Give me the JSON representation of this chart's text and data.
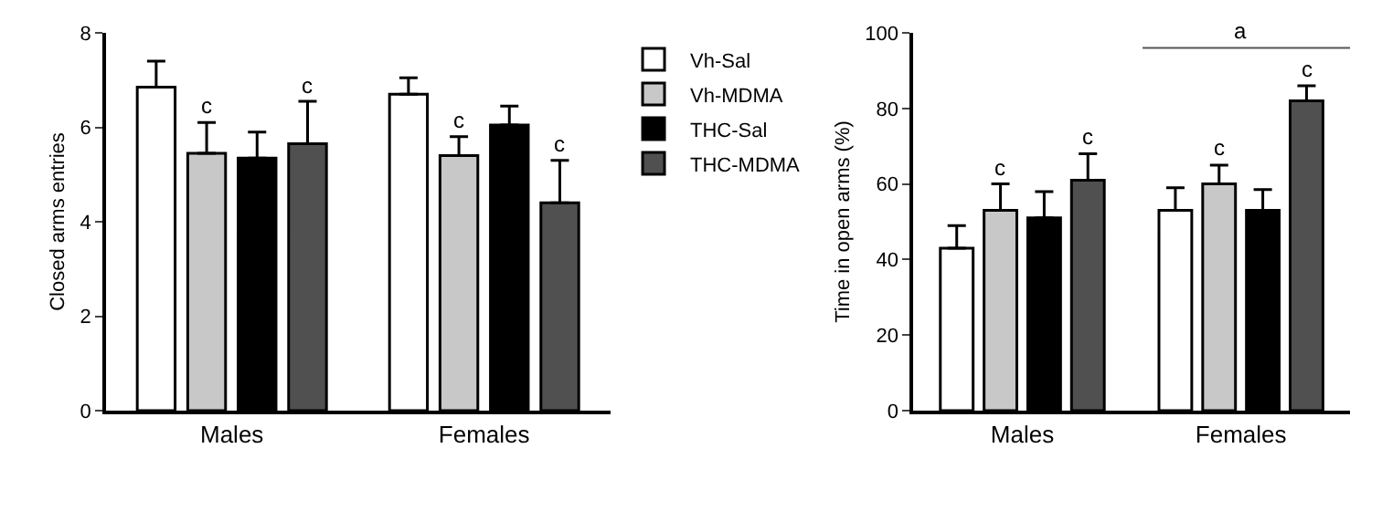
{
  "chart_data": [
    {
      "type": "bar",
      "ylabel": "Closed arms entries",
      "categories": [
        "Males",
        "Females"
      ],
      "ylim": [
        0,
        8
      ],
      "yticks": [
        0,
        2,
        4,
        6,
        8
      ],
      "legend": "top right",
      "series": [
        {
          "name": "Vh-Sal",
          "color": "#ffffff",
          "values": [
            6.85,
            6.7
          ],
          "errors": [
            [
              6.85,
              7.4
            ],
            [
              6.7,
              7.05
            ]
          ],
          "value_labels": [
            null,
            null
          ]
        },
        {
          "name": "Vh-MDMA",
          "color": "#c8c8c8",
          "values": [
            5.45,
            5.4
          ],
          "errors": [
            [
              5.45,
              6.1
            ],
            [
              5.4,
              5.8
            ]
          ],
          "value_labels": [
            "c",
            "c"
          ]
        },
        {
          "name": "THC-Sal",
          "color": "#000000",
          "values": [
            5.35,
            6.05
          ],
          "errors": [
            [
              5.35,
              5.9
            ],
            [
              6.05,
              6.45
            ]
          ],
          "value_labels": [
            null,
            null
          ]
        },
        {
          "name": "THC-MDMA",
          "color": "#505050",
          "values": [
            5.65,
            4.4
          ],
          "errors": [
            [
              5.65,
              6.55
            ],
            [
              4.4,
              5.3
            ]
          ],
          "value_labels": [
            "c",
            "c"
          ]
        }
      ]
    },
    {
      "type": "bar",
      "ylabel": "Time in open arms (%)",
      "categories": [
        "Males",
        "Females"
      ],
      "ylim": [
        0,
        100
      ],
      "yticks": [
        0,
        20,
        40,
        60,
        80,
        100
      ],
      "annotations": [
        "a"
      ],
      "series": [
        {
          "color": "#ffffff",
          "values": [
            43,
            53
          ],
          "errors": [
            [
              43,
              49
            ],
            [
              53,
              59
            ]
          ],
          "value_labels": [
            null,
            null
          ]
        },
        {
          "color": "#c8c8c8",
          "values": [
            53,
            60
          ],
          "errors": [
            [
              53,
              60
            ],
            [
              60,
              65
            ]
          ],
          "value_labels": [
            "c",
            "c"
          ]
        },
        {
          "color": "#000000",
          "values": [
            51,
            53
          ],
          "errors": [
            [
              51,
              58
            ],
            [
              53,
              58.5
            ]
          ],
          "value_labels": [
            null,
            null
          ]
        },
        {
          "color": "#505050",
          "values": [
            61,
            82
          ],
          "errors": [
            [
              61,
              68
            ],
            [
              82,
              86
            ]
          ],
          "value_labels": [
            "c",
            "c"
          ]
        }
      ]
    }
  ]
}
